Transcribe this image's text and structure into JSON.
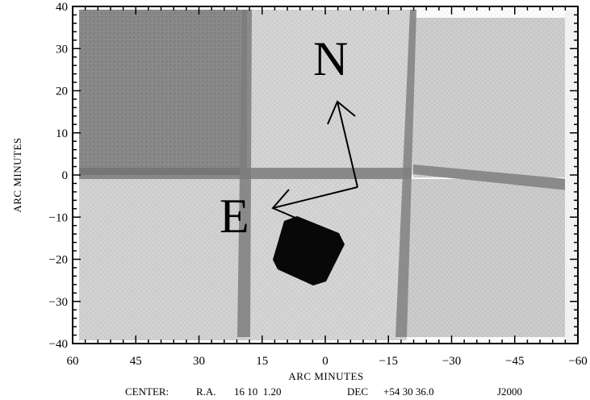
{
  "figure": {
    "xlabel": "ARC MINUTES",
    "ylabel": "ARC MINUTES",
    "x_ticks": [
      "60",
      "45",
      "30",
      "15",
      "0",
      "−15",
      "−30",
      "−45",
      "−60"
    ],
    "y_ticks": [
      "40",
      "30",
      "20",
      "10",
      "0",
      "−10",
      "−20",
      "−30",
      "−40"
    ],
    "x_range": [
      60,
      -60
    ],
    "y_range": [
      -40,
      40
    ],
    "compass": {
      "north_label": "N",
      "east_label": "E"
    },
    "caption": {
      "center_label": "CENTER:",
      "ra_label": "R.A.",
      "ra_value": "16 10  1.20",
      "dec_label": "DEC",
      "dec_value": "+54 30 36.0",
      "epoch": "J2000"
    }
  }
}
